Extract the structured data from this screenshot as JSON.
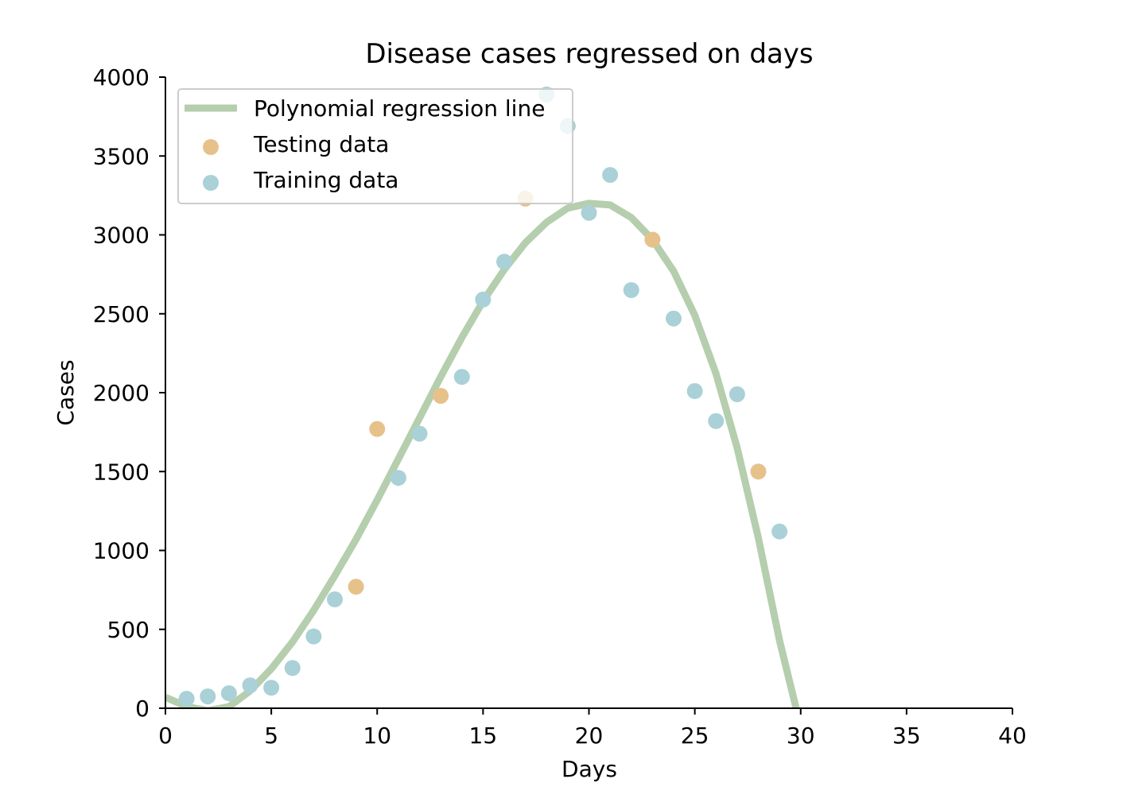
{
  "chart_data": {
    "type": "scatter",
    "title": "Disease cases regressed on days",
    "xlabel": "Days",
    "ylabel": "Cases",
    "xlim": [
      0,
      40
    ],
    "ylim": [
      0,
      4000
    ],
    "xticks": [
      0,
      5,
      10,
      15,
      20,
      25,
      30,
      35,
      40
    ],
    "yticks": [
      0,
      500,
      1000,
      1500,
      2000,
      2500,
      3000,
      3500,
      4000
    ],
    "grid": false,
    "legend_position": "upper-left",
    "series": [
      {
        "name": "Polynomial regression line",
        "kind": "line",
        "color": "#b5ceae",
        "x": [
          0,
          1,
          2,
          3,
          4,
          5,
          6,
          7,
          8,
          9,
          10,
          11,
          12,
          13,
          14,
          15,
          16,
          17,
          18,
          19,
          20,
          21,
          22,
          23,
          24,
          25,
          26,
          27,
          28,
          29,
          30
        ],
        "y": [
          70,
          10,
          -15,
          10,
          110,
          250,
          420,
          620,
          840,
          1070,
          1320,
          1580,
          1840,
          2100,
          2350,
          2580,
          2780,
          2950,
          3080,
          3170,
          3200,
          3190,
          3110,
          2970,
          2770,
          2490,
          2120,
          1650,
          1080,
          430,
          -120
        ]
      },
      {
        "name": "Testing data",
        "kind": "scatter",
        "color": "#e6c28a",
        "x": [
          9,
          10,
          13,
          17,
          23,
          28
        ],
        "y": [
          770,
          1770,
          1980,
          3230,
          2970,
          1500
        ]
      },
      {
        "name": "Training data",
        "kind": "scatter",
        "color": "#a9d1d7",
        "x": [
          1,
          2,
          3,
          4,
          5,
          6,
          7,
          8,
          11,
          12,
          14,
          15,
          16,
          18,
          19,
          20,
          21,
          22,
          24,
          25,
          26,
          27,
          29
        ],
        "y": [
          60,
          75,
          95,
          145,
          130,
          255,
          455,
          690,
          1460,
          1740,
          2100,
          2590,
          2830,
          3890,
          3690,
          3140,
          3380,
          2650,
          2470,
          2010,
          1820,
          1990,
          1120
        ]
      }
    ]
  }
}
